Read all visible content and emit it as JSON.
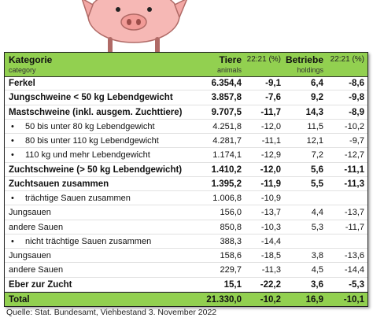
{
  "header": {
    "category": "Kategorie",
    "category_en": "category",
    "animals": "Tiere",
    "animals_en": "animals",
    "animals_change": "22:21 (%)",
    "holdings": "Betriebe",
    "holdings_en": "holdings",
    "holdings_change": "22:21 (%)"
  },
  "rows": [
    {
      "label": "Ferkel",
      "animals": "6.354,4",
      "animals_change": "-9,1",
      "holdings": "6,4",
      "holdings_change": "-8,6",
      "bold": true
    },
    {
      "label": "Jungschweine < 50 kg Lebendgewicht",
      "animals": "3.857,8",
      "animals_change": "-7,6",
      "holdings": "9,2",
      "holdings_change": "-9,8",
      "bold": true
    },
    {
      "label": "Mastschweine (inkl. ausgem. Zuchttiere)",
      "animals": "9.707,5",
      "animals_change": "-11,7",
      "holdings": "14,3",
      "holdings_change": "-8,9",
      "bold": true
    },
    {
      "label": "50 bis unter 80 kg Lebendgewicht",
      "animals": "4.251,8",
      "animals_change": "-12,0",
      "holdings": "11,5",
      "holdings_change": "-10,2",
      "bullet": true
    },
    {
      "label": "80 bis unter 110 kg Lebendgewicht",
      "animals": "4.281,7",
      "animals_change": "-11,1",
      "holdings": "12,1",
      "holdings_change": "-9,7",
      "bullet": true
    },
    {
      "label": "110 kg und mehr Lebendgewicht",
      "animals": "1.174,1",
      "animals_change": "-12,9",
      "holdings": "7,2",
      "holdings_change": "-12,7",
      "bullet": true
    },
    {
      "label": "Zuchtschweine (> 50 kg Lebendgewicht)",
      "animals": "1.410,2",
      "animals_change": "-12,0",
      "holdings": "5,6",
      "holdings_change": "-11,1",
      "bold": true
    },
    {
      "label": "Zuchtsauen zusammen",
      "animals": "1.395,2",
      "animals_change": "-11,9",
      "holdings": "5,5",
      "holdings_change": "-11,3",
      "bold": true
    },
    {
      "label": "trächtige Sauen zusammen",
      "animals": "1.006,8",
      "animals_change": "-10,9",
      "bullet": true
    },
    {
      "label": "Jungsauen",
      "animals": "156,0",
      "animals_change": "-13,7",
      "holdings": "4,4",
      "holdings_change": "-13,7"
    },
    {
      "label": "andere Sauen",
      "animals": "850,8",
      "animals_change": "-10,3",
      "holdings": "5,3",
      "holdings_change": "-11,7"
    },
    {
      "label": "nicht trächtige Sauen zusammen",
      "animals": "388,3",
      "animals_change": "-14,4",
      "bullet": true
    },
    {
      "label": "Jungsauen",
      "animals": "158,6",
      "animals_change": "-18,5",
      "holdings": "3,8",
      "holdings_change": "-13,6"
    },
    {
      "label": "andere Sauen",
      "animals": "229,7",
      "animals_change": "-11,3",
      "holdings": "4,5",
      "holdings_change": "-14,4"
    },
    {
      "label": "Eber zur Zucht",
      "animals": "15,1",
      "animals_change": "-22,2",
      "holdings": "3,6",
      "holdings_change": "-5,3",
      "bold": true
    },
    {
      "label": "Total",
      "animals": "21.330,0",
      "animals_change": "-10,2",
      "holdings": "16,9",
      "holdings_change": "-10,1",
      "bold": true,
      "total": true
    }
  ],
  "source": "Quelle: Stat. Bundesamt, Viehbestand 3. November 2022"
}
